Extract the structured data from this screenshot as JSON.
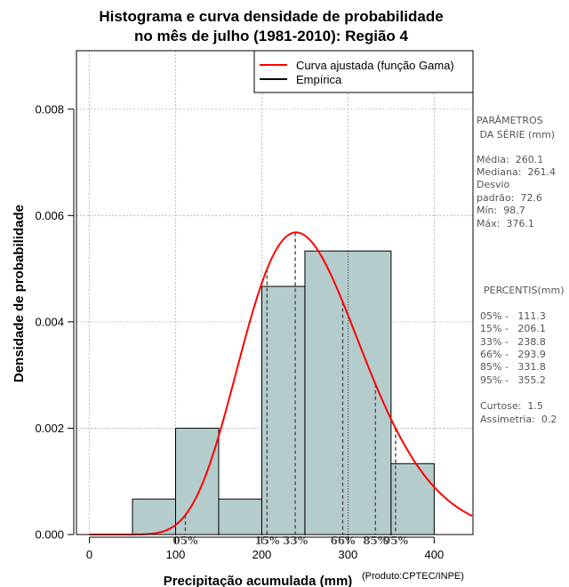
{
  "chart_data": {
    "type": "histogram",
    "title": [
      "Histograma e curva densidade de probabilidade",
      "no mês de julho (1981-2010): Região 4"
    ],
    "xlabel": "Precipitação acumulada (mm)",
    "ylabel": "Densidade de probabilidade",
    "product_note": "(Produto:CPTEC/INPE)",
    "xlim": [
      -15,
      445
    ],
    "ylim": [
      0,
      0.0091
    ],
    "x_ticks": [
      0,
      100,
      200,
      300,
      400
    ],
    "y_ticks": [
      0.0,
      0.002,
      0.004,
      0.006,
      0.008
    ],
    "y_tick_labels": [
      "0.000",
      "0.002",
      "0.004",
      "0.006",
      "0.008"
    ],
    "grid": true,
    "bins": [
      {
        "from": 50,
        "to": 100,
        "density": 0.000667
      },
      {
        "from": 100,
        "to": 150,
        "density": 0.002
      },
      {
        "from": 150,
        "to": 200,
        "density": 0.000667
      },
      {
        "from": 200,
        "to": 250,
        "density": 0.004667
      },
      {
        "from": 250,
        "to": 350,
        "density": 0.005333
      },
      {
        "from": 350,
        "to": 400,
        "density": 0.001333
      }
    ],
    "bar_color": "#b4cccc",
    "curve": {
      "name": "Curva ajustada (função Gama)",
      "color": "#ff0000",
      "distribution": "gamma",
      "mean": 260.1,
      "sd": 72.6,
      "x_range": [
        0,
        445
      ]
    },
    "legend": {
      "position": "top-right",
      "entries": [
        {
          "label": "Curva ajustada (função Gama)",
          "color": "#ff0000"
        },
        {
          "label": "Empírica",
          "color": "#000000"
        }
      ]
    },
    "percentile_markers": [
      {
        "label": "05%",
        "value": 111.3
      },
      {
        "label": "15%",
        "value": 206.1
      },
      {
        "label": "33%",
        "value": 238.8
      },
      {
        "label": "66%",
        "value": 293.9
      },
      {
        "label": "85%",
        "value": 331.8
      },
      {
        "label": "95%",
        "value": 355.2
      }
    ]
  },
  "stats_panel": {
    "params_heading": [
      "PARÂMETROS",
      " DA SÉRIE (mm)"
    ],
    "params": [
      "Média:  260.1",
      "Mediana:  261.4",
      "Desvio",
      "padrão:  72.6",
      "Mín:  98.7",
      "Máx:  376.1"
    ],
    "percentis_heading": "PERCENTIS(mm)",
    "percentis": [
      "05% -   111.3",
      "15% -   206.1",
      "33% -   238.8",
      "66% -   293.9",
      "85% -   331.8",
      "95% -   355.2"
    ],
    "shape": [
      "Curtose:  1.5",
      "Assimetria:  0.2"
    ]
  }
}
